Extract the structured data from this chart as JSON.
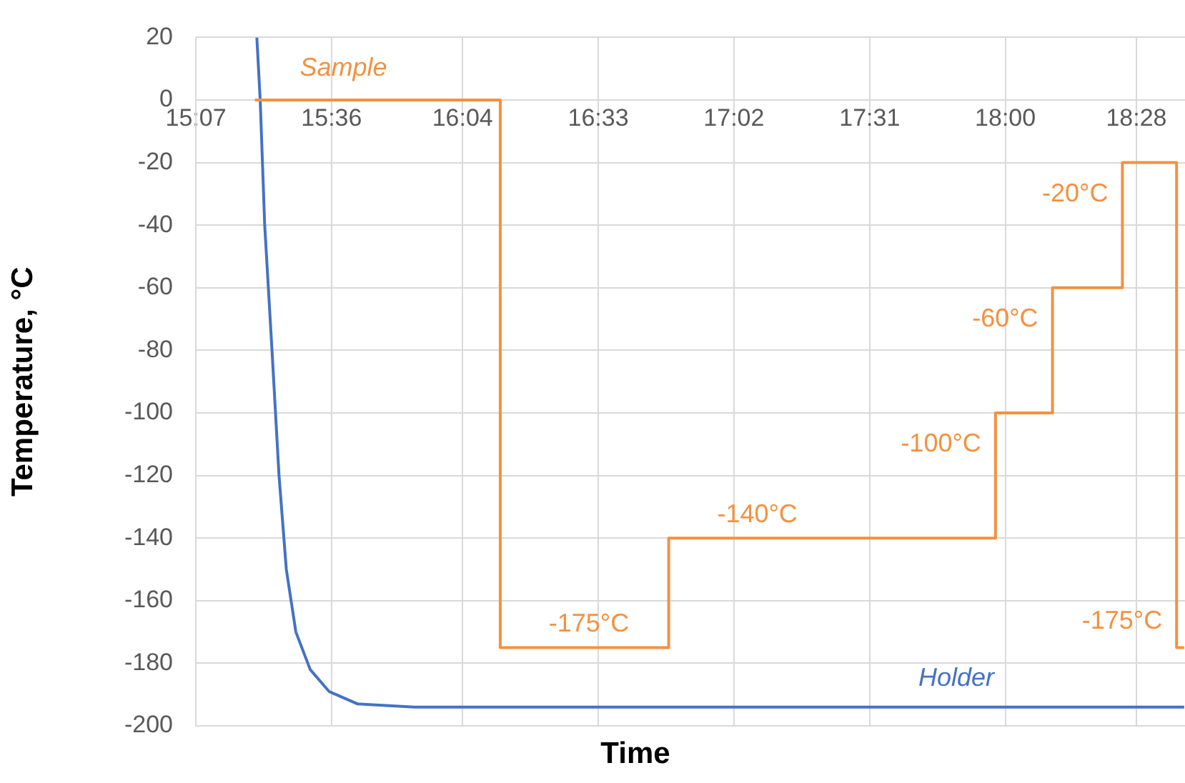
{
  "chart_data": {
    "type": "line",
    "xlabel": "Time",
    "ylabel": "Temperature, °C",
    "xlim": [
      15.1167,
      18.64
    ],
    "xticks": [
      {
        "value": 15.1167,
        "label": "15:07"
      },
      {
        "value": 15.6,
        "label": "15:36"
      },
      {
        "value": 16.0667,
        "label": "16:04"
      },
      {
        "value": 16.55,
        "label": "16:33"
      },
      {
        "value": 17.0333,
        "label": "17:02"
      },
      {
        "value": 17.5167,
        "label": "17:31"
      },
      {
        "value": 18.0,
        "label": "18:00"
      },
      {
        "value": 18.4667,
        "label": "18:28"
      }
    ],
    "ylim": [
      -200,
      20
    ],
    "yticks": [
      20,
      0,
      -20,
      -40,
      -60,
      -80,
      -100,
      -120,
      -140,
      -160,
      -180,
      -200
    ],
    "grid": true,
    "legend": false,
    "marker": "none",
    "line_style": "solid",
    "series": [
      {
        "name": "Sample",
        "type": "step",
        "color": "#f4913f",
        "x": [
          15.327,
          16.201,
          16.801,
          17.965,
          18.168,
          18.417,
          18.61,
          18.637
        ],
        "values": [
          0,
          -175,
          -140,
          -100,
          -60,
          -20,
          -175,
          -175
        ]
      },
      {
        "name": "Holder",
        "color": "#4472c4",
        "x": [
          15.334,
          15.346,
          15.362,
          15.388,
          15.413,
          15.439,
          15.473,
          15.524,
          15.591,
          15.693,
          15.896,
          16.084,
          18.637
        ],
        "values": [
          20,
          0,
          -40,
          -80,
          -120,
          -150,
          -170,
          -182,
          -189,
          -193,
          -194,
          -194,
          -194
        ]
      }
    ],
    "annotations": [
      {
        "text": "-175°C",
        "x": 16.201,
        "y": -175
      },
      {
        "text": "-140°C",
        "x": 16.801,
        "y": -140
      },
      {
        "text": "-100°C",
        "x": 17.965,
        "y": -100
      },
      {
        "text": "-60°C",
        "x": 18.168,
        "y": -60
      },
      {
        "text": "-20°C",
        "x": 18.417,
        "y": -20
      },
      {
        "text": "-175°C",
        "x": 18.61,
        "y": -175
      }
    ]
  }
}
